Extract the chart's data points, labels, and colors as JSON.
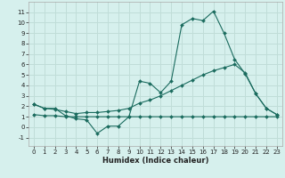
{
  "xlabel": "Humidex (Indice chaleur)",
  "xlim": [
    -0.5,
    23.5
  ],
  "ylim": [
    -1.8,
    12.0
  ],
  "yticks": [
    -1,
    0,
    1,
    2,
    3,
    4,
    5,
    6,
    7,
    8,
    9,
    10,
    11
  ],
  "xticks": [
    0,
    1,
    2,
    3,
    4,
    5,
    6,
    7,
    8,
    9,
    10,
    11,
    12,
    13,
    14,
    15,
    16,
    17,
    18,
    19,
    20,
    21,
    22,
    23
  ],
  "bg_color": "#d6f0ed",
  "line_color": "#1a6b5e",
  "grid_color": "#c0ddd8",
  "line1_y": [
    2.2,
    1.8,
    1.8,
    1.1,
    0.8,
    0.7,
    -0.6,
    0.1,
    0.1,
    1.0,
    4.4,
    4.2,
    3.3,
    4.4,
    9.8,
    10.4,
    10.2,
    11.1,
    9.0,
    6.5,
    5.1,
    3.2,
    1.8,
    1.2
  ],
  "line2_y": [
    2.2,
    1.8,
    1.7,
    1.5,
    1.3,
    1.4,
    1.4,
    1.5,
    1.6,
    1.8,
    2.3,
    2.6,
    3.0,
    3.5,
    4.0,
    4.5,
    5.0,
    5.4,
    5.7,
    6.0,
    5.2,
    3.2,
    1.8,
    1.2
  ],
  "line3_y": [
    1.2,
    1.1,
    1.1,
    1.0,
    1.0,
    1.0,
    1.0,
    1.0,
    1.0,
    1.0,
    1.0,
    1.0,
    1.0,
    1.0,
    1.0,
    1.0,
    1.0,
    1.0,
    1.0,
    1.0,
    1.0,
    1.0,
    1.0,
    1.0
  ]
}
